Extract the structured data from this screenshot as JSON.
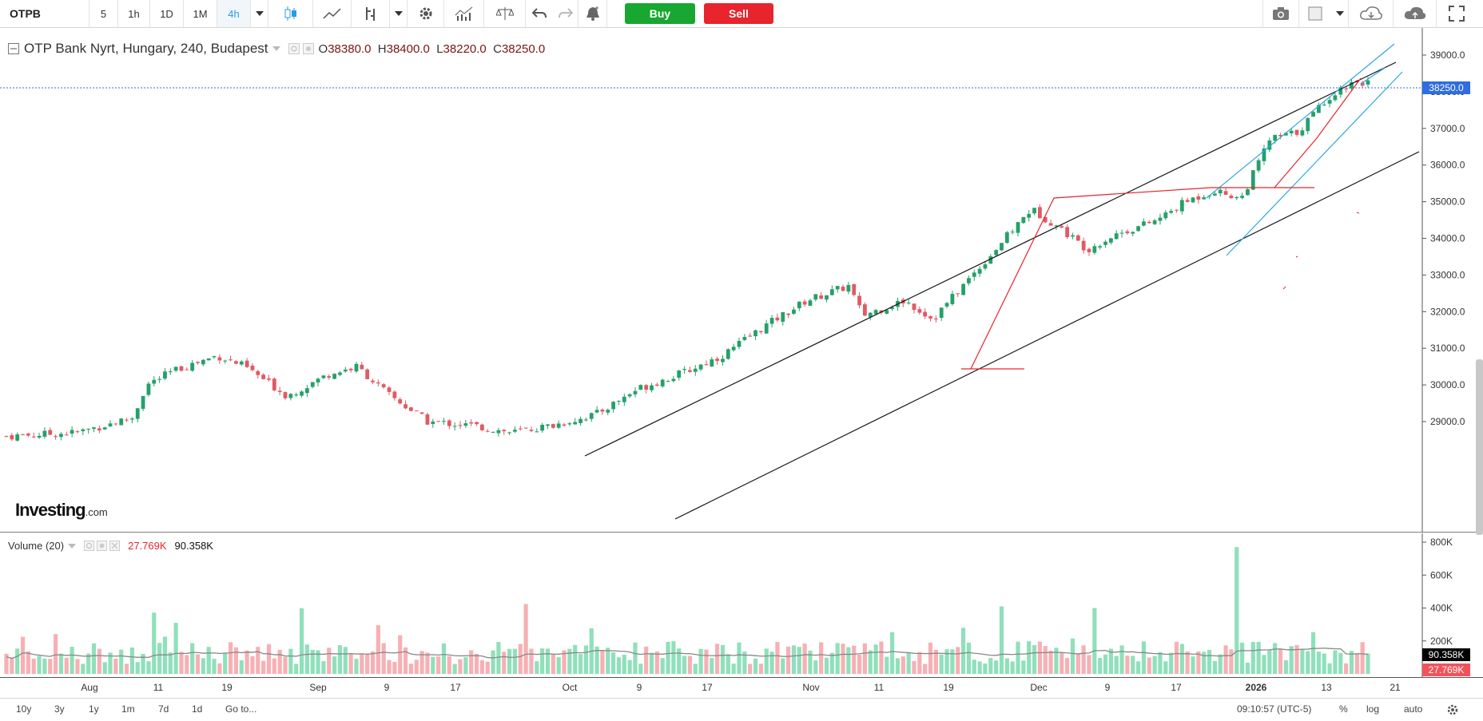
{
  "toolbar": {
    "symbol": "OTPB",
    "intervals": [
      "5",
      "1h",
      "1D",
      "1M",
      "4h"
    ],
    "active_interval": "4h",
    "buy_label": "Buy",
    "sell_label": "Sell",
    "icons": [
      "dropdown-icon",
      "candlestick-icon",
      "line-chart-icon",
      "bar-tool-icon",
      "dropdown-icon",
      "settings-icon",
      "indicators-icon",
      "compare-icon",
      "undo-icon",
      "redo-icon",
      "alert-icon",
      "camera-icon",
      "color-square-icon",
      "dropdown-icon",
      "cloud-download-icon",
      "cloud-upload-icon",
      "fullscreen-icon"
    ]
  },
  "legend": {
    "title": "OTP Bank Nyrt, Hungary, 240, Budapest",
    "open_label": "O",
    "open": "38380.0",
    "high_label": "H",
    "high": "38400.0",
    "low_label": "L",
    "low": "38220.0",
    "close_label": "C",
    "close": "38250.0"
  },
  "price_tag": "38250.0",
  "volume_legend": {
    "title": "Volume (20)",
    "value1": "27.769K",
    "value2": "90.358K"
  },
  "volume_tags": {
    "ma": "90.358K",
    "last": "27.769K"
  },
  "logo": {
    "main": "Investing",
    "suffix": ".com"
  },
  "chart_data": {
    "type": "candlestick",
    "title": "OTP Bank Nyrt, Hungary, 240, Budapest",
    "price_axis_ticks": [
      39000,
      38000,
      37000,
      36000,
      35000,
      34000,
      33000,
      32000,
      31000,
      30000,
      29000
    ],
    "price_axis_labels": [
      "39000.0",
      "38000.0",
      "37000.0",
      "36000.0",
      "35000.0",
      "34000.0",
      "33000.0",
      "32000.0",
      "31000.0",
      "30000.0",
      "29000.0"
    ],
    "ylim": [
      28400,
      39400
    ],
    "time_axis_labels": [
      "Aug",
      "11",
      "19",
      "Sep",
      "9",
      "17",
      "Oct",
      "9",
      "17",
      "Nov",
      "11",
      "19",
      "Dec",
      "9",
      "17",
      "2026",
      "13",
      "21"
    ],
    "volume_axis_labels": [
      "800K",
      "600K",
      "400K",
      "200K"
    ],
    "price_path": [
      [
        0,
        28600
      ],
      [
        0.05,
        28700
      ],
      [
        0.09,
        29100
      ],
      [
        0.1,
        30000
      ],
      [
        0.12,
        30400
      ],
      [
        0.15,
        30800
      ],
      [
        0.17,
        30500
      ],
      [
        0.2,
        29700
      ],
      [
        0.23,
        30300
      ],
      [
        0.25,
        30500
      ],
      [
        0.27,
        29800
      ],
      [
        0.3,
        29000
      ],
      [
        0.33,
        28900
      ],
      [
        0.36,
        28700
      ],
      [
        0.39,
        28900
      ],
      [
        0.42,
        29200
      ],
      [
        0.45,
        29900
      ],
      [
        0.48,
        30300
      ],
      [
        0.51,
        30800
      ],
      [
        0.54,
        31600
      ],
      [
        0.57,
        32300
      ],
      [
        0.6,
        32700
      ],
      [
        0.61,
        31900
      ],
      [
        0.64,
        32300
      ],
      [
        0.66,
        31800
      ],
      [
        0.7,
        33500
      ],
      [
        0.73,
        34800
      ],
      [
        0.75,
        34300
      ],
      [
        0.77,
        33700
      ],
      [
        0.79,
        34100
      ],
      [
        0.82,
        34500
      ],
      [
        0.84,
        35000
      ],
      [
        0.86,
        35300
      ],
      [
        0.88,
        35100
      ],
      [
        0.9,
        36700
      ],
      [
        0.92,
        36900
      ],
      [
        0.94,
        37800
      ],
      [
        0.96,
        38300
      ],
      [
        0.97,
        38250
      ]
    ],
    "last_price": 38250,
    "annotations": [
      "black parallel channel",
      "blue parallel channel",
      "red trend lines"
    ],
    "grid": false
  },
  "bottom_bar": {
    "ranges": [
      "10y",
      "3y",
      "1y",
      "1m",
      "7d",
      "1d"
    ],
    "goto": "Go to...",
    "time": "09:10:57 (UTC-5)",
    "percent": "%",
    "log": "log",
    "auto": "auto"
  }
}
